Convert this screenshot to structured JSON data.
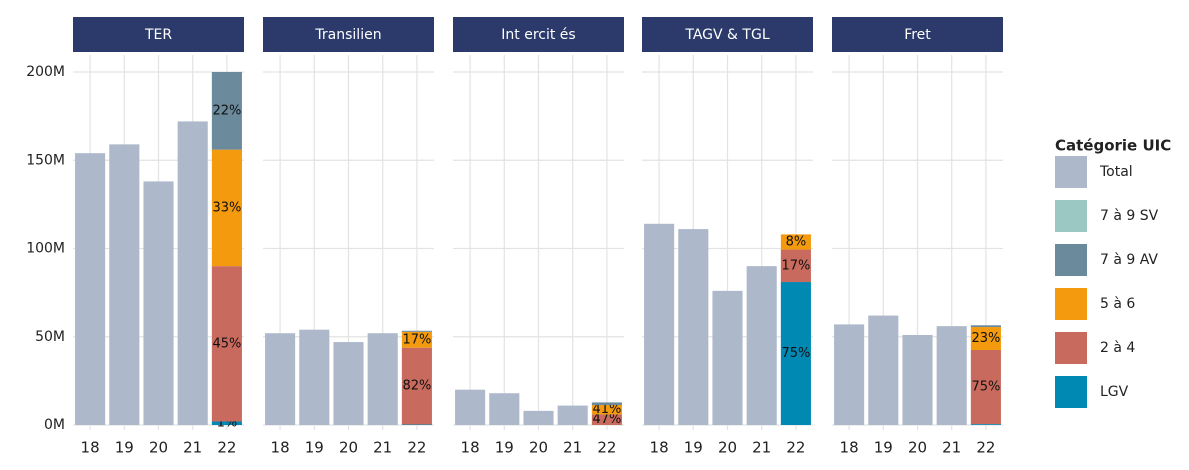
{
  "chart_data": [
    {
      "type": "bar",
      "title": "TER",
      "categories": [
        "18",
        "19",
        "20",
        "21",
        "22"
      ],
      "ylim": [
        0,
        200
      ],
      "yticks": [
        {
          "value": 0,
          "label": "0M"
        },
        {
          "value": 50,
          "label": "50M"
        },
        {
          "value": 100,
          "label": "100M"
        },
        {
          "value": 150,
          "label": "150M"
        },
        {
          "value": 200,
          "label": "200M"
        }
      ],
      "series": [
        {
          "name": "Total",
          "color": "#adb8cb",
          "values": [
            154,
            159,
            138,
            172,
            null
          ]
        },
        {
          "name": "7 à 9 SV",
          "color": "#9cc8c4",
          "values": [
            null,
            null,
            null,
            null,
            null
          ]
        },
        {
          "name": "7 à 9 AV",
          "color": "#6b8a9c",
          "values": [
            null,
            null,
            null,
            null,
            44
          ],
          "share_labels": [
            null,
            null,
            null,
            null,
            "22%"
          ]
        },
        {
          "name": "5 à 6",
          "color": "#f39a0e",
          "values": [
            null,
            null,
            null,
            null,
            66
          ],
          "share_labels": [
            null,
            null,
            null,
            null,
            "33%"
          ]
        },
        {
          "name": "2 à 4",
          "color": "#c96a5e",
          "values": [
            null,
            null,
            null,
            null,
            88
          ],
          "share_labels": [
            null,
            null,
            null,
            null,
            "45%"
          ]
        },
        {
          "name": "LGV",
          "color": "#0089b3",
          "values": [
            null,
            null,
            null,
            null,
            2
          ],
          "share_labels": [
            null,
            null,
            null,
            null,
            "1%"
          ]
        }
      ]
    },
    {
      "type": "bar",
      "title": "Transilien",
      "categories": [
        "18",
        "19",
        "20",
        "21",
        "22"
      ],
      "ylim": [
        0,
        200
      ],
      "yticks": [
        {
          "value": 0,
          "label": "0M"
        },
        {
          "value": 50,
          "label": "50M"
        },
        {
          "value": 100,
          "label": "100M"
        },
        {
          "value": 150,
          "label": "150M"
        },
        {
          "value": 200,
          "label": "200M"
        }
      ],
      "series": [
        {
          "name": "Total",
          "color": "#adb8cb",
          "values": [
            52,
            54,
            47,
            52,
            null
          ]
        },
        {
          "name": "7 à 9 SV",
          "color": "#9cc8c4",
          "values": [
            null,
            null,
            null,
            null,
            null
          ]
        },
        {
          "name": "7 à 9 AV",
          "color": "#6b8a9c",
          "values": [
            null,
            null,
            null,
            null,
            0.6
          ]
        },
        {
          "name": "5 à 6",
          "color": "#f39a0e",
          "values": [
            null,
            null,
            null,
            null,
            9
          ],
          "share_labels": [
            null,
            null,
            null,
            null,
            "17%"
          ]
        },
        {
          "name": "2 à 4",
          "color": "#c96a5e",
          "values": [
            null,
            null,
            null,
            null,
            43.5
          ],
          "share_labels": [
            null,
            null,
            null,
            null,
            "82%"
          ]
        },
        {
          "name": "LGV",
          "color": "#0089b3",
          "values": [
            null,
            null,
            null,
            null,
            0.3
          ]
        }
      ]
    },
    {
      "type": "bar",
      "title": "Int ercit és",
      "categories": [
        "18",
        "19",
        "20",
        "21",
        "22"
      ],
      "ylim": [
        0,
        200
      ],
      "yticks": [
        {
          "value": 0,
          "label": "0M"
        },
        {
          "value": 50,
          "label": "50M"
        },
        {
          "value": 100,
          "label": "100M"
        },
        {
          "value": 150,
          "label": "150M"
        },
        {
          "value": 200,
          "label": "200M"
        }
      ],
      "series": [
        {
          "name": "Total",
          "color": "#adb8cb",
          "values": [
            20,
            18,
            8,
            11,
            null
          ]
        },
        {
          "name": "7 à 9 SV",
          "color": "#9cc8c4",
          "values": [
            null,
            null,
            null,
            null,
            null
          ]
        },
        {
          "name": "7 à 9 AV",
          "color": "#6b8a9c",
          "values": [
            null,
            null,
            null,
            null,
            1.5
          ]
        },
        {
          "name": "5 à 6",
          "color": "#f39a0e",
          "values": [
            null,
            null,
            null,
            null,
            5.3
          ],
          "share_labels": [
            null,
            null,
            null,
            null,
            "41%"
          ]
        },
        {
          "name": "2 à 4",
          "color": "#c96a5e",
          "values": [
            null,
            null,
            null,
            null,
            6
          ],
          "share_labels": [
            null,
            null,
            null,
            null,
            "47%"
          ]
        },
        {
          "name": "LGV",
          "color": "#0089b3",
          "values": [
            null,
            null,
            null,
            null,
            null
          ]
        }
      ]
    },
    {
      "type": "bar",
      "title": "TAGV & TGL",
      "categories": [
        "18",
        "19",
        "20",
        "21",
        "22"
      ],
      "ylim": [
        0,
        200
      ],
      "yticks": [
        {
          "value": 0,
          "label": "0M"
        },
        {
          "value": 50,
          "label": "50M"
        },
        {
          "value": 100,
          "label": "100M"
        },
        {
          "value": 150,
          "label": "150M"
        },
        {
          "value": 200,
          "label": "200M"
        }
      ],
      "series": [
        {
          "name": "Total",
          "color": "#adb8cb",
          "values": [
            114,
            111,
            76,
            90,
            null
          ]
        },
        {
          "name": "7 à 9 SV",
          "color": "#9cc8c4",
          "values": [
            null,
            null,
            null,
            null,
            null
          ]
        },
        {
          "name": "7 à 9 AV",
          "color": "#6b8a9c",
          "values": [
            null,
            null,
            null,
            null,
            null
          ]
        },
        {
          "name": "5 à 6",
          "color": "#f39a0e",
          "values": [
            null,
            null,
            null,
            null,
            8.6
          ],
          "share_labels": [
            null,
            null,
            null,
            null,
            "8%"
          ]
        },
        {
          "name": "2 à 4",
          "color": "#c96a5e",
          "values": [
            null,
            null,
            null,
            null,
            18.4
          ],
          "share_labels": [
            null,
            null,
            null,
            null,
            "17%"
          ]
        },
        {
          "name": "LGV",
          "color": "#0089b3",
          "values": [
            null,
            null,
            null,
            null,
            81
          ],
          "share_labels": [
            null,
            null,
            null,
            null,
            "75%"
          ]
        }
      ]
    },
    {
      "type": "bar",
      "title": "Fret",
      "categories": [
        "18",
        "19",
        "20",
        "21",
        "22"
      ],
      "ylim": [
        0,
        200
      ],
      "yticks": [
        {
          "value": 0,
          "label": "0M"
        },
        {
          "value": 50,
          "label": "50M"
        },
        {
          "value": 100,
          "label": "100M"
        },
        {
          "value": 150,
          "label": "150M"
        },
        {
          "value": 200,
          "label": "200M"
        }
      ],
      "series": [
        {
          "name": "Total",
          "color": "#adb8cb",
          "values": [
            57,
            62,
            51,
            56,
            null
          ]
        },
        {
          "name": "7 à 9 SV",
          "color": "#9cc8c4",
          "values": [
            null,
            null,
            null,
            null,
            null
          ]
        },
        {
          "name": "7 à 9 AV",
          "color": "#6b8a9c",
          "values": [
            null,
            null,
            null,
            null,
            1
          ]
        },
        {
          "name": "5 à 6",
          "color": "#f39a0e",
          "values": [
            null,
            null,
            null,
            null,
            13
          ],
          "share_labels": [
            null,
            null,
            null,
            null,
            "23%"
          ]
        },
        {
          "name": "2 à 4",
          "color": "#c96a5e",
          "values": [
            null,
            null,
            null,
            null,
            42
          ],
          "share_labels": [
            null,
            null,
            null,
            null,
            "75%"
          ]
        },
        {
          "name": "LGV",
          "color": "#0089b3",
          "values": [
            null,
            null,
            null,
            null,
            0.5
          ]
        }
      ]
    }
  ],
  "legend": {
    "title": "Catégorie UIC"
  }
}
